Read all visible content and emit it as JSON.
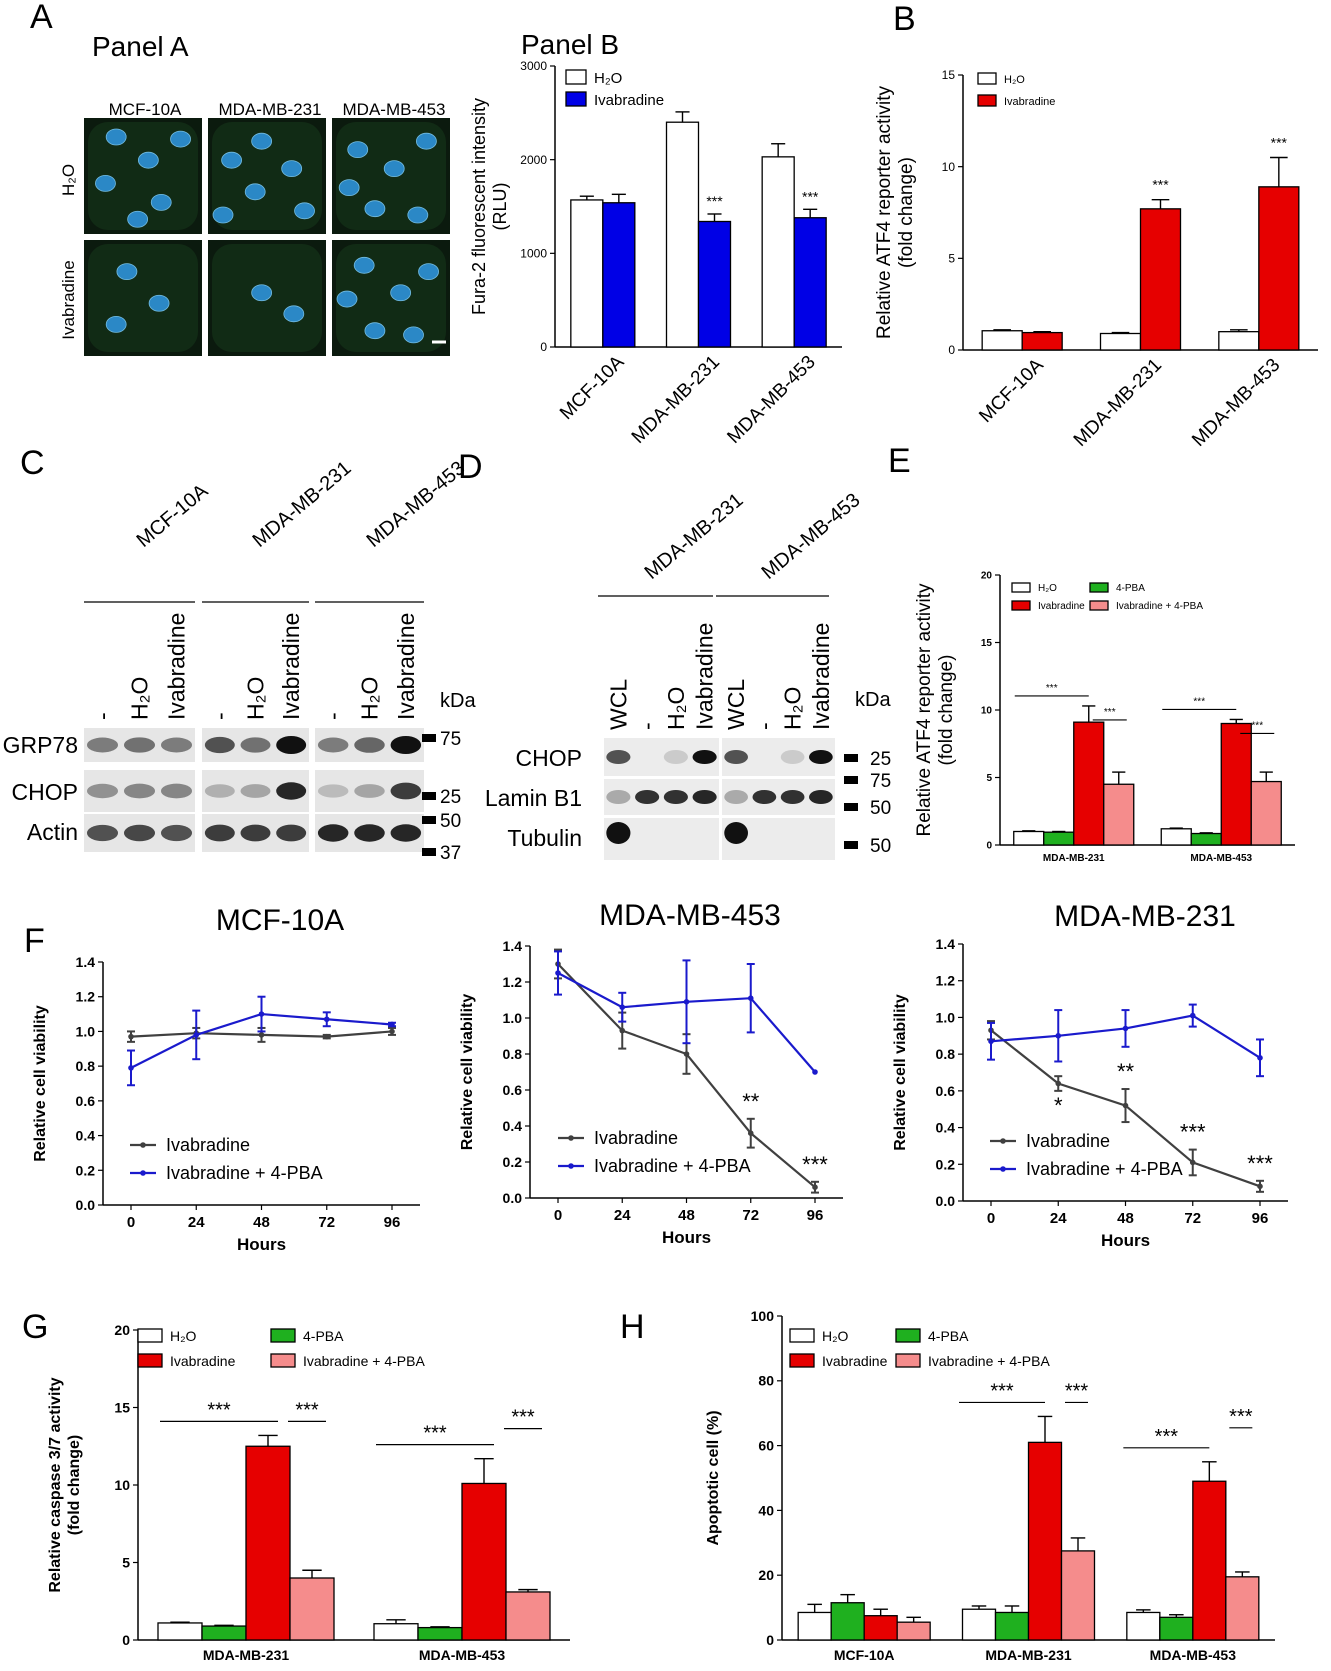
{
  "letters": {
    "A": "A",
    "B": "B",
    "C": "C",
    "D": "D",
    "E": "E",
    "F": "F",
    "G": "G",
    "H": "H"
  },
  "colors": {
    "white_bar": "#ffffff",
    "blue_bar": "#0000e6",
    "red_bar": "#e60000",
    "green_bar": "#1fb01f",
    "pink_bar": "#f58c8c",
    "line_dark": "#404040",
    "line_blue": "#1a1acc",
    "nucleus": "#2a8fd8",
    "cyto": "#0f2a14"
  },
  "panelA": {
    "title": "Panel A",
    "columns": [
      "MCF-10A",
      "MDA-MB-231",
      "MDA-MB-453"
    ],
    "rows": [
      "H₂O",
      "Ivabradine"
    ]
  },
  "panelB_fura": {
    "title": "Panel B",
    "ylabel": "Fura-2 fluorescent intensity",
    "ylabel2": "(RLU)",
    "yticks": [
      "0",
      "1000",
      "2000",
      "3000"
    ],
    "ylim": [
      0,
      3000
    ],
    "categories": [
      "MCF-10A",
      "MDA-MB-231",
      "MDA-MB-453"
    ],
    "series": [
      {
        "name": "H₂O",
        "color": "#ffffff",
        "values": [
          1570,
          2400,
          2030
        ],
        "err": [
          40,
          110,
          140
        ]
      },
      {
        "name": "Ivabradine",
        "color": "#0000e6",
        "values": [
          1540,
          1340,
          1380
        ],
        "err": [
          90,
          80,
          90
        ]
      }
    ],
    "sig": [
      "",
      "***",
      "***"
    ]
  },
  "panelB_atf4": {
    "ylabel": "Relative ATF4 reporter activity",
    "ylabel2": "(fold change)",
    "yticks": [
      "0",
      "5",
      "10",
      "15"
    ],
    "ylim": [
      0,
      15
    ],
    "categories": [
      "MCF-10A",
      "MDA-MB-231",
      "MDA-MB-453"
    ],
    "series": [
      {
        "name": "H₂O",
        "color": "#ffffff",
        "values": [
          1.05,
          0.9,
          1.0
        ],
        "err": [
          0.05,
          0.05,
          0.1
        ]
      },
      {
        "name": "Ivabradine",
        "color": "#e60000",
        "values": [
          0.95,
          7.7,
          8.9
        ],
        "err": [
          0.05,
          0.5,
          1.6
        ]
      }
    ],
    "sig": [
      "",
      "***",
      "***"
    ]
  },
  "panelC": {
    "cells": [
      "MCF-10A",
      "MDA-MB-231",
      "MDA-MB-453"
    ],
    "lanes": [
      "-",
      "H₂O",
      "Ivabradine"
    ],
    "kda": "kDa",
    "proteins": [
      "GRP78",
      "CHOP",
      "Actin"
    ],
    "markers": [
      "75",
      "25",
      "50",
      "37"
    ]
  },
  "panelD": {
    "cells": [
      "MDA-MB-231",
      "MDA-MB-453"
    ],
    "lanes": [
      "WCL",
      "-",
      "H₂O",
      "Ivabradine"
    ],
    "kda": "kDa",
    "proteins": [
      "CHOP",
      "Lamin B1",
      "Tubulin"
    ],
    "markers": [
      "25",
      "75",
      "50",
      "50"
    ]
  },
  "panelE": {
    "ylabel": "Relative ATF4 reporter activity",
    "ylabel2": "(fold change)",
    "yticks": [
      "0",
      "5",
      "10",
      "15",
      "20"
    ],
    "ylim": [
      0,
      20
    ],
    "categories": [
      "MDA-MB-231",
      "MDA-MB-453"
    ],
    "series": [
      {
        "name": "H₂O",
        "color": "#ffffff",
        "values": [
          1.0,
          1.2
        ],
        "err": [
          0.05,
          0.05
        ]
      },
      {
        "name": "4-PBA",
        "color": "#1fb01f",
        "values": [
          0.95,
          0.85
        ],
        "err": [
          0.05,
          0.05
        ]
      },
      {
        "name": "Ivabradine",
        "color": "#e60000",
        "values": [
          9.1,
          9.0
        ],
        "err": [
          1.2,
          0.3
        ]
      },
      {
        "name": "Ivabradine + 4-PBA",
        "color": "#f58c8c",
        "values": [
          4.5,
          4.7
        ],
        "err": [
          0.9,
          0.7
        ]
      }
    ],
    "sig": "***"
  },
  "panelF": [
    {
      "title": "MCF-10A",
      "ylabel": "Relative cell viability",
      "xlabel": "Hours",
      "x": [
        0,
        24,
        48,
        72,
        96
      ],
      "yticks": [
        "0.0",
        "0.2",
        "0.4",
        "0.6",
        "0.8",
        "1.0",
        "1.2",
        "1.4"
      ],
      "ylim": [
        0,
        1.4
      ],
      "series": [
        {
          "name": "Ivabradine",
          "values": [
            0.97,
            0.99,
            0.98,
            0.97,
            1.0
          ],
          "err": [
            0.03,
            0.03,
            0.04,
            0.01,
            0.02
          ]
        },
        {
          "name": "Ivabradine + 4-PBA",
          "values": [
            0.79,
            0.98,
            1.1,
            1.07,
            1.04
          ],
          "err": [
            0.1,
            0.14,
            0.1,
            0.04,
            0.01
          ]
        }
      ],
      "sig": []
    },
    {
      "title": "MDA-MB-453",
      "ylabel": "Relative cell viability",
      "xlabel": "Hours",
      "x": [
        0,
        24,
        48,
        72,
        96
      ],
      "yticks": [
        "0.0",
        "0.2",
        "0.4",
        "0.6",
        "0.8",
        "1.0",
        "1.2",
        "1.4"
      ],
      "ylim": [
        0,
        1.4
      ],
      "series": [
        {
          "name": "Ivabradine",
          "values": [
            1.3,
            0.93,
            0.8,
            0.36,
            0.06
          ],
          "err": [
            0.08,
            0.1,
            0.11,
            0.08,
            0.03
          ]
        },
        {
          "name": "Ivabradine + 4-PBA",
          "values": [
            1.25,
            1.06,
            1.09,
            1.11,
            0.7
          ],
          "err": [
            0.12,
            0.08,
            0.23,
            0.19,
            0.0
          ]
        }
      ],
      "sig": [
        "",
        "",
        "",
        "**",
        "***"
      ]
    },
    {
      "title": "MDA-MB-231",
      "ylabel": "Relative cell viability",
      "xlabel": "Hours",
      "x": [
        0,
        24,
        48,
        72,
        96
      ],
      "yticks": [
        "0.0",
        "0.2",
        "0.4",
        "0.6",
        "0.8",
        "1.0",
        "1.2",
        "1.4"
      ],
      "ylim": [
        0,
        1.4
      ],
      "series": [
        {
          "name": "Ivabradine",
          "values": [
            0.93,
            0.64,
            0.52,
            0.21,
            0.08
          ],
          "err": [
            0.05,
            0.04,
            0.09,
            0.07,
            0.03
          ]
        },
        {
          "name": "Ivabradine + 4-PBA",
          "values": [
            0.87,
            0.9,
            0.94,
            1.01,
            0.78
          ],
          "err": [
            0.1,
            0.14,
            0.1,
            0.06,
            0.1
          ]
        }
      ],
      "sig": [
        "",
        "*",
        "**",
        "***",
        "***"
      ]
    }
  ],
  "panelG": {
    "ylabel": "Relative caspase 3/7 activity",
    "ylabel2": "(fold change)",
    "yticks": [
      "0",
      "5",
      "10",
      "15",
      "20"
    ],
    "ylim": [
      0,
      20
    ],
    "categories": [
      "MDA-MB-231",
      "MDA-MB-453"
    ],
    "series": [
      {
        "name": "H₂O",
        "color": "#ffffff",
        "values": [
          1.1,
          1.05
        ],
        "err": [
          0.05,
          0.25
        ]
      },
      {
        "name": "4-PBA",
        "color": "#1fb01f",
        "values": [
          0.9,
          0.8
        ],
        "err": [
          0.05,
          0.05
        ]
      },
      {
        "name": "Ivabradine",
        "color": "#e60000",
        "values": [
          12.5,
          10.1
        ],
        "err": [
          0.7,
          1.6
        ]
      },
      {
        "name": "Ivabradine + 4-PBA",
        "color": "#f58c8c",
        "values": [
          4.0,
          3.1
        ],
        "err": [
          0.5,
          0.15
        ]
      }
    ],
    "sig": "***"
  },
  "panelH": {
    "ylabel": "Apoptotic cell (%)",
    "yticks": [
      "0",
      "20",
      "40",
      "60",
      "80",
      "100"
    ],
    "ylim": [
      0,
      100
    ],
    "categories": [
      "MCF-10A",
      "MDA-MB-231",
      "MDA-MB-453"
    ],
    "series": [
      {
        "name": "H₂O",
        "color": "#ffffff",
        "values": [
          8.5,
          9.5,
          8.5
        ],
        "err": [
          2.5,
          1.0,
          0.8
        ]
      },
      {
        "name": "4-PBA",
        "color": "#1fb01f",
        "values": [
          11.5,
          8.5,
          7.0
        ],
        "err": [
          2.5,
          2.0,
          0.8
        ]
      },
      {
        "name": "Ivabradine",
        "color": "#e60000",
        "values": [
          7.5,
          61,
          49
        ],
        "err": [
          2.0,
          8.0,
          6.0
        ]
      },
      {
        "name": "Ivabradine + 4-PBA",
        "color": "#f58c8c",
        "values": [
          5.5,
          27.5,
          19.5
        ],
        "err": [
          1.5,
          4.0,
          1.5
        ]
      }
    ],
    "sig": "***"
  },
  "chart_data": [
    {
      "type": "bar",
      "title": "Panel B",
      "categories": [
        "MCF-10A",
        "MDA-MB-231",
        "MDA-MB-453"
      ],
      "ylabel": "Fura-2 fluorescent intensity (RLU)",
      "ylim": [
        0,
        3000
      ],
      "series": [
        {
          "name": "H₂O",
          "values": [
            1570,
            2400,
            2030
          ]
        },
        {
          "name": "Ivabradine",
          "values": [
            1540,
            1340,
            1380
          ]
        }
      ]
    },
    {
      "type": "bar",
      "categories": [
        "MCF-10A",
        "MDA-MB-231",
        "MDA-MB-453"
      ],
      "ylabel": "Relative ATF4 reporter activity (fold change)",
      "ylim": [
        0,
        15
      ],
      "series": [
        {
          "name": "H₂O",
          "values": [
            1.05,
            0.9,
            1.0
          ]
        },
        {
          "name": "Ivabradine",
          "values": [
            0.95,
            7.7,
            8.9
          ]
        }
      ]
    },
    {
      "type": "bar",
      "categories": [
        "MDA-MB-231",
        "MDA-MB-453"
      ],
      "ylabel": "Relative ATF4 reporter activity (fold change)",
      "ylim": [
        0,
        20
      ],
      "series": [
        {
          "name": "H₂O",
          "values": [
            1.0,
            1.2
          ]
        },
        {
          "name": "4-PBA",
          "values": [
            0.95,
            0.85
          ]
        },
        {
          "name": "Ivabradine",
          "values": [
            9.1,
            9.0
          ]
        },
        {
          "name": "Ivabradine + 4-PBA",
          "values": [
            4.5,
            4.7
          ]
        }
      ]
    },
    {
      "type": "line",
      "title": "MCF-10A",
      "x": [
        0,
        24,
        48,
        72,
        96
      ],
      "xlabel": "Hours",
      "ylabel": "Relative cell viability",
      "ylim": [
        0,
        1.4
      ],
      "series": [
        {
          "name": "Ivabradine",
          "values": [
            0.97,
            0.99,
            0.98,
            0.97,
            1.0
          ]
        },
        {
          "name": "Ivabradine + 4-PBA",
          "values": [
            0.79,
            0.98,
            1.1,
            1.07,
            1.04
          ]
        }
      ]
    },
    {
      "type": "line",
      "title": "MDA-MB-453",
      "x": [
        0,
        24,
        48,
        72,
        96
      ],
      "xlabel": "Hours",
      "ylabel": "Relative cell viability",
      "ylim": [
        0,
        1.4
      ],
      "series": [
        {
          "name": "Ivabradine",
          "values": [
            1.3,
            0.93,
            0.8,
            0.36,
            0.06
          ]
        },
        {
          "name": "Ivabradine + 4-PBA",
          "values": [
            1.25,
            1.06,
            1.09,
            1.11,
            0.7
          ]
        }
      ]
    },
    {
      "type": "line",
      "title": "MDA-MB-231",
      "x": [
        0,
        24,
        48,
        72,
        96
      ],
      "xlabel": "Hours",
      "ylabel": "Relative cell viability",
      "ylim": [
        0,
        1.4
      ],
      "series": [
        {
          "name": "Ivabradine",
          "values": [
            0.93,
            0.64,
            0.52,
            0.21,
            0.08
          ]
        },
        {
          "name": "Ivabradine + 4-PBA",
          "values": [
            0.87,
            0.9,
            0.94,
            1.01,
            0.78
          ]
        }
      ]
    },
    {
      "type": "bar",
      "categories": [
        "MDA-MB-231",
        "MDA-MB-453"
      ],
      "ylabel": "Relative caspase 3/7 activity (fold change)",
      "ylim": [
        0,
        20
      ],
      "series": [
        {
          "name": "H₂O",
          "values": [
            1.1,
            1.05
          ]
        },
        {
          "name": "4-PBA",
          "values": [
            0.9,
            0.8
          ]
        },
        {
          "name": "Ivabradine",
          "values": [
            12.5,
            10.1
          ]
        },
        {
          "name": "Ivabradine + 4-PBA",
          "values": [
            4.0,
            3.1
          ]
        }
      ]
    },
    {
      "type": "bar",
      "categories": [
        "MCF-10A",
        "MDA-MB-231",
        "MDA-MB-453"
      ],
      "ylabel": "Apoptotic cell (%)",
      "ylim": [
        0,
        100
      ],
      "series": [
        {
          "name": "H₂O",
          "values": [
            8.5,
            9.5,
            8.5
          ]
        },
        {
          "name": "4-PBA",
          "values": [
            11.5,
            8.5,
            7.0
          ]
        },
        {
          "name": "Ivabradine",
          "values": [
            7.5,
            61,
            49
          ]
        },
        {
          "name": "Ivabradine + 4-PBA",
          "values": [
            5.5,
            27.5,
            19.5
          ]
        }
      ]
    }
  ]
}
